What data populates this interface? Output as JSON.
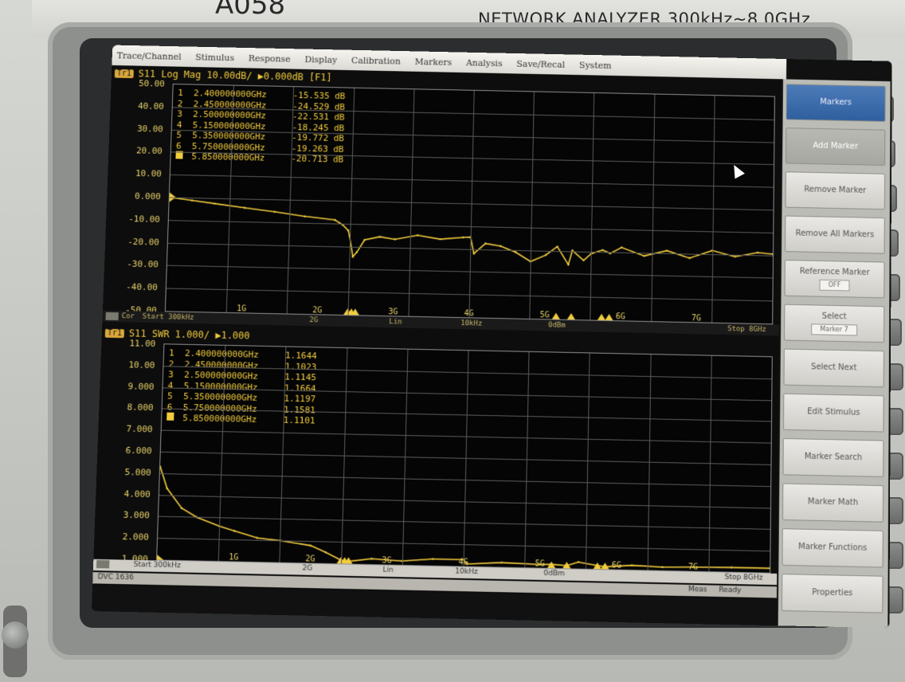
{
  "device": {
    "brand_text": "NETWORK ANALYZER 300kHz~8.0GHz",
    "model_fragment": "A058"
  },
  "menu": {
    "items": [
      "Trace/Channel",
      "Stimulus",
      "Response",
      "Display",
      "Calibration",
      "Markers",
      "Analysis",
      "Save/Recal",
      "System"
    ]
  },
  "upper": {
    "trace_badge": "Tr1",
    "header": "S11 Log Mag 10.00dB/ ▶0.000dB [F1]",
    "y_ticks": [
      "50.00",
      "40.00",
      "30.00",
      "20.00",
      "10.00",
      "0.000",
      "-10.00",
      "-20.00",
      "-30.00",
      "-40.00",
      "-50.00"
    ],
    "x_ticks": [
      "1G",
      "2G",
      "3G",
      "4G",
      "5G",
      "6G",
      "7G"
    ],
    "markers": [
      {
        "num": "1",
        "freq": "2.400000000GHz",
        "value": "-15.535 dB"
      },
      {
        "num": "2",
        "freq": "2.450000000GHz",
        "value": "-24.529 dB"
      },
      {
        "num": "3",
        "freq": "2.500000000GHz",
        "value": "-22.531 dB"
      },
      {
        "num": "4",
        "freq": "5.150000000GHz",
        "value": "-18.245 dB"
      },
      {
        "num": "5",
        "freq": "5.350000000GHz",
        "value": "-19.772 dB"
      },
      {
        "num": "6",
        "freq": "5.750000000GHz",
        "value": "-19.263 dB"
      },
      {
        "num": "",
        "freq": "5.850000000GHz",
        "value": "-20.713 dB"
      }
    ],
    "stim_start": "Start 300kHz",
    "stim_stop": "Stop 8GHz",
    "bottom_labels": [
      "2G",
      "Lin",
      "10kHz",
      "0dBm"
    ],
    "ch_label": "Cor"
  },
  "lower": {
    "trace_badge": "Tr1",
    "header": "S11 SWR 1.000/ ▶1.000",
    "y_ticks": [
      "11.00",
      "10.00",
      "9.000",
      "8.000",
      "7.000",
      "6.000",
      "5.000",
      "4.000",
      "3.000",
      "2.000",
      "1.000"
    ],
    "x_ticks": [
      "1G",
      "2G",
      "3G",
      "4G",
      "5G",
      "6G",
      "7G"
    ],
    "markers": [
      {
        "num": "1",
        "freq": "2.400000000GHz",
        "value": "1.1644"
      },
      {
        "num": "2",
        "freq": "2.450000000GHz",
        "value": "1.1023"
      },
      {
        "num": "3",
        "freq": "2.500000000GHz",
        "value": "1.1145"
      },
      {
        "num": "4",
        "freq": "5.150000000GHz",
        "value": "1.1664"
      },
      {
        "num": "5",
        "freq": "5.350000000GHz",
        "value": "1.1197"
      },
      {
        "num": "6",
        "freq": "5.750000000GHz",
        "value": "1.1581"
      },
      {
        "num": "",
        "freq": "5.850000000GHz",
        "value": "1.1101"
      }
    ],
    "stim_start": "Start 300kHz",
    "stim_stop": "Stop 8GHz",
    "bottom_labels": [
      "2G",
      "Lin",
      "10kHz",
      "0dBm"
    ],
    "status_left": "DVC 1636",
    "status_right": [
      "Meas",
      "Ready"
    ]
  },
  "softkeys": [
    {
      "label": "Markers",
      "kind": "header"
    },
    {
      "label": "Add Marker",
      "kind": "pressed"
    },
    {
      "label": "Remove Marker",
      "kind": "normal"
    },
    {
      "label": "Remove All Markers",
      "kind": "normal"
    },
    {
      "label": "Reference Marker",
      "sub": "OFF",
      "kind": "normal"
    },
    {
      "label": "Select",
      "sub": "Marker 7",
      "kind": "normal"
    },
    {
      "label": "Select Next",
      "kind": "normal"
    },
    {
      "label": "Edit Stimulus",
      "kind": "normal"
    },
    {
      "label": "Marker Search",
      "kind": "normal"
    },
    {
      "label": "Marker Math",
      "kind": "normal"
    },
    {
      "label": "Marker Functions",
      "kind": "normal"
    },
    {
      "label": "Properties",
      "kind": "normal"
    }
  ],
  "colors": {
    "trace": "#f2cc3d",
    "grid": "#5a5a5a",
    "softkey_header": "#2f5f9e"
  },
  "chart_data": [
    {
      "type": "line",
      "title": "S11 Log Mag 10.00dB/ ▶0.000dB [F1]",
      "xlabel": "",
      "ylabel": "",
      "xlim": [
        0.0003,
        8.0
      ],
      "ylim": [
        -50,
        50
      ],
      "grid": true,
      "series": [
        {
          "name": "S11",
          "x": [
            0.0003,
            0.3,
            0.6,
            1.0,
            1.4,
            1.8,
            2.2,
            2.3,
            2.38,
            2.4,
            2.45,
            2.5,
            2.6,
            2.8,
            3.0,
            3.3,
            3.6,
            3.9,
            4.0,
            4.05,
            4.2,
            4.4,
            4.6,
            4.8,
            5.0,
            5.15,
            5.3,
            5.35,
            5.5,
            5.6,
            5.75,
            5.85,
            6.0,
            6.3,
            6.6,
            6.9,
            7.2,
            7.5,
            7.8,
            8.0
          ],
          "y": [
            0.0,
            -1.2,
            -2.4,
            -4.0,
            -5.5,
            -7.2,
            -8.5,
            -10.5,
            -13.0,
            -15.5,
            -24.5,
            -22.5,
            -17.0,
            -15.5,
            -16.5,
            -14.5,
            -16.0,
            -15.0,
            -14.8,
            -22.0,
            -17.5,
            -18.5,
            -21.0,
            -25.0,
            -22.0,
            -18.2,
            -26.0,
            -19.8,
            -24.0,
            -21.0,
            -19.3,
            -20.7,
            -18.0,
            -21.5,
            -19.0,
            -22.0,
            -18.5,
            -21.0,
            -19.0,
            -19.5
          ]
        }
      ],
      "markers_x": [
        2.4,
        2.45,
        2.5,
        5.15,
        5.35,
        5.75,
        5.85
      ]
    },
    {
      "type": "line",
      "title": "S11 SWR 1.000/ ▶1.000",
      "xlabel": "",
      "ylabel": "",
      "xlim": [
        0.0003,
        8.0
      ],
      "ylim": [
        1,
        11
      ],
      "grid": true,
      "series": [
        {
          "name": "S11",
          "x": [
            0.0003,
            0.1,
            0.3,
            0.5,
            0.8,
            1.0,
            1.3,
            1.6,
            2.0,
            2.2,
            2.4,
            2.45,
            2.5,
            2.8,
            3.2,
            3.6,
            4.0,
            4.05,
            4.5,
            5.0,
            5.15,
            5.35,
            5.5,
            5.75,
            5.85,
            6.2,
            6.6,
            7.0,
            7.5,
            8.0
          ],
          "y": [
            5.3,
            4.3,
            3.4,
            3.0,
            2.6,
            2.4,
            2.1,
            2.0,
            1.8,
            1.5,
            1.16,
            1.1,
            1.11,
            1.25,
            1.18,
            1.3,
            1.3,
            1.1,
            1.2,
            1.15,
            1.17,
            1.12,
            1.3,
            1.16,
            1.11,
            1.2,
            1.15,
            1.18,
            1.2,
            1.2
          ]
        }
      ],
      "markers_x": [
        2.4,
        2.45,
        2.5,
        5.15,
        5.35,
        5.75,
        5.85
      ]
    }
  ]
}
